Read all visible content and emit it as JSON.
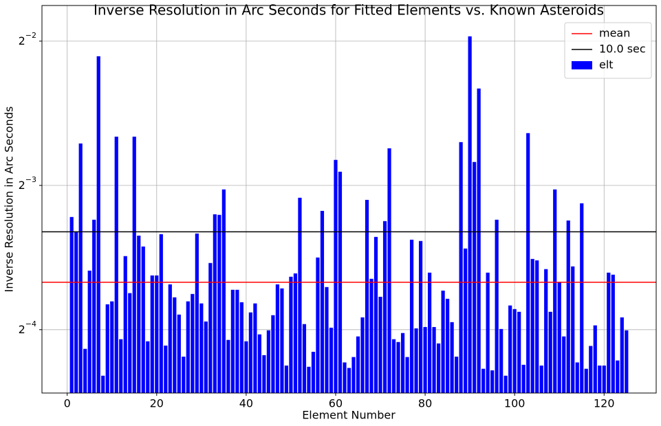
{
  "chart_data": {
    "type": "bar",
    "title": "Inverse Resolution in Arc Seconds for Fitted Elements vs. Known Asteroids",
    "x_label": "Element Number",
    "y_label": "Inverse Resolution in Arc Seconds",
    "x": [
      1,
      2,
      3,
      4,
      5,
      6,
      7,
      8,
      9,
      10,
      11,
      12,
      13,
      14,
      15,
      16,
      17,
      18,
      19,
      20,
      21,
      22,
      23,
      24,
      25,
      26,
      27,
      28,
      29,
      30,
      31,
      32,
      33,
      34,
      35,
      36,
      37,
      38,
      39,
      40,
      41,
      42,
      43,
      44,
      45,
      46,
      47,
      48,
      49,
      50,
      51,
      52,
      53,
      54,
      55,
      56,
      57,
      58,
      59,
      60,
      61,
      62,
      63,
      64,
      65,
      66,
      67,
      68,
      69,
      70,
      71,
      72,
      73,
      74,
      75,
      76,
      77,
      78,
      79,
      80,
      81,
      82,
      83,
      84,
      85,
      86,
      87,
      88,
      89,
      90,
      91,
      92,
      93,
      94,
      95,
      96,
      97,
      98,
      99,
      100,
      101,
      102,
      103,
      104,
      105,
      106,
      107,
      108,
      109,
      110,
      111,
      112,
      113,
      114,
      115,
      116,
      117,
      118,
      119,
      120,
      121,
      122,
      123,
      124,
      125
    ],
    "series": [
      {
        "name": "elt",
        "color": "#0000ff",
        "values": [
          0.1074,
          0.1002,
          0.1529,
          0.057,
          0.083,
          0.106,
          0.2325,
          0.0501,
          0.0706,
          0.0716,
          0.158,
          0.0597,
          0.089,
          0.0745,
          0.158,
          0.0982,
          0.0932,
          0.0591,
          0.0811,
          0.0811,
          0.0989,
          0.0579,
          0.0777,
          0.073,
          0.0672,
          0.0549,
          0.0716,
          0.0742,
          0.0992,
          0.0709,
          0.065,
          0.0861,
          0.1088,
          0.1085,
          0.1226,
          0.0595,
          0.0757,
          0.0757,
          0.0713,
          0.0591,
          0.0679,
          0.0709,
          0.0611,
          0.0553,
          0.0623,
          0.067,
          0.0777,
          0.0762,
          0.0526,
          0.0806,
          0.0819,
          0.1178,
          0.0642,
          0.0523,
          0.0562,
          0.0884,
          0.1106,
          0.0767,
          0.0631,
          0.1413,
          0.1335,
          0.0534,
          0.052,
          0.0548,
          0.0605,
          0.0663,
          0.1166,
          0.0798,
          0.0976,
          0.0732,
          0.1053,
          0.1494,
          0.0597,
          0.0589,
          0.0615,
          0.0548,
          0.0963,
          0.0629,
          0.0957,
          0.0633,
          0.0822,
          0.0633,
          0.0585,
          0.0754,
          0.0725,
          0.0648,
          0.0549,
          0.1539,
          0.0923,
          0.2558,
          0.1399,
          0.1991,
          0.0518,
          0.0822,
          0.0514,
          0.106,
          0.0627,
          0.0501,
          0.0702,
          0.069,
          0.0681,
          0.0528,
          0.1607,
          0.0878,
          0.0872,
          0.0526,
          0.0836,
          0.0681,
          0.1226,
          0.0785,
          0.0605,
          0.1056,
          0.0847,
          0.0534,
          0.1147,
          0.0518,
          0.0578,
          0.0638,
          0.0526,
          0.0526,
          0.0822,
          0.0814,
          0.0539,
          0.0663,
          0.0623
        ]
      }
    ],
    "hlines": [
      {
        "name": "mean",
        "color": "#ff0000",
        "value": 0.0785
      },
      {
        "name": "10.0 sec",
        "color": "#000000",
        "value": 0.1
      }
    ],
    "xlim": [
      -5.64,
      131.64
    ],
    "xticks": [
      0,
      20,
      40,
      60,
      80,
      100,
      120
    ],
    "ylim": [
      0.0461,
      0.2967
    ],
    "y_scale": "log2",
    "yticks": [
      {
        "value": 0.0625,
        "label": "2^−4"
      },
      {
        "value": 0.125,
        "label": "2^−3"
      },
      {
        "value": 0.25,
        "label": "2^−2"
      }
    ],
    "grid": true,
    "legend": "upper right"
  }
}
